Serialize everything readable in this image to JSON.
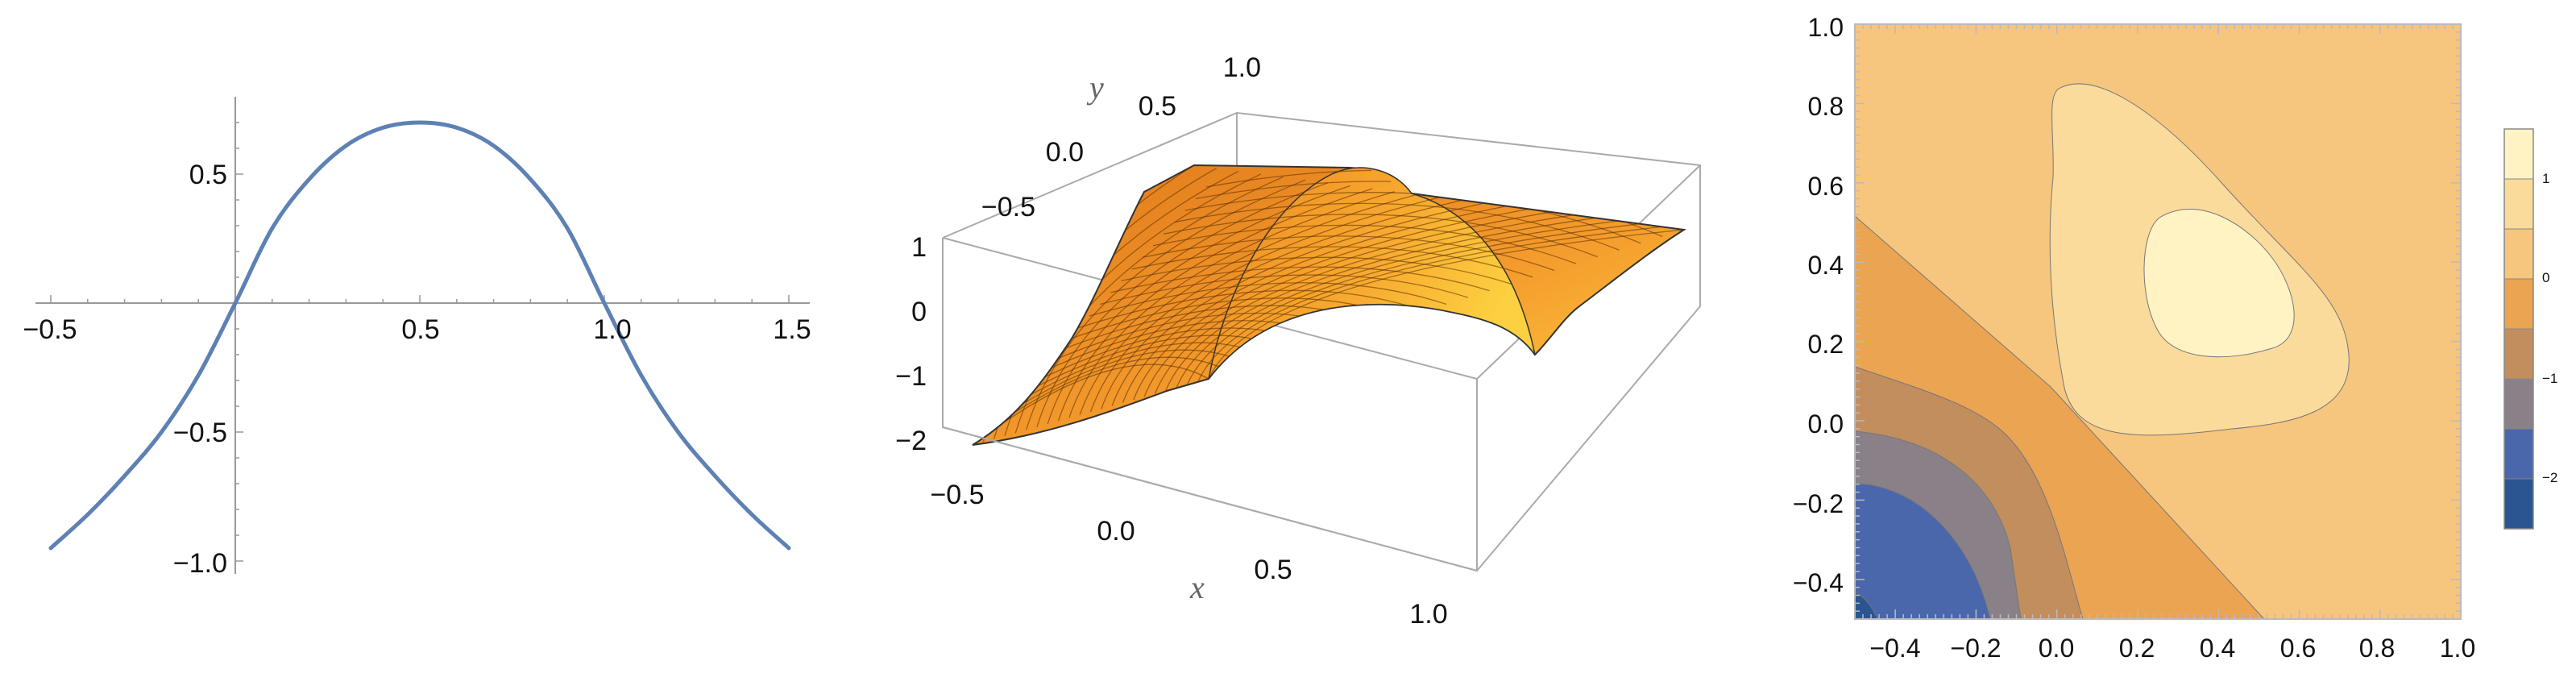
{
  "chart_data": [
    {
      "type": "line",
      "x_ticks": [
        "−0.5",
        "0.5",
        "1.0",
        "1.5"
      ],
      "y_ticks": [
        "0.5",
        "−0.5",
        "−1.0"
      ],
      "xlim": [
        -0.5,
        1.5
      ],
      "ylim": [
        -1.0,
        0.7
      ],
      "series": [
        {
          "color": "#5e81b5",
          "x": [
            -0.5,
            -0.4,
            -0.3,
            -0.2,
            -0.1,
            0.0,
            0.1,
            0.2,
            0.3,
            0.4,
            0.5,
            0.6,
            0.7,
            0.8,
            0.9,
            1.0,
            1.1,
            1.2,
            1.3,
            1.4,
            1.5
          ],
          "y": [
            -0.95,
            -0.82,
            -0.67,
            -0.5,
            -0.28,
            0.0,
            0.29,
            0.48,
            0.61,
            0.68,
            0.7,
            0.68,
            0.61,
            0.48,
            0.29,
            0.0,
            -0.28,
            -0.5,
            -0.67,
            -0.82,
            -0.95
          ]
        }
      ],
      "grid": false,
      "axes_origin": [
        0,
        0
      ]
    },
    {
      "type": "surface",
      "x_label": "x",
      "y_label": "y",
      "x_ticks": [
        "−0.5",
        "0.0",
        "0.5",
        "1.0"
      ],
      "y_ticks": [
        "−0.5",
        "0.0",
        "0.5",
        "1.0"
      ],
      "z_ticks": [
        "1",
        "0",
        "−1",
        "−2"
      ],
      "xlim": [
        -0.5,
        1.0
      ],
      "ylim": [
        -0.5,
        1.0
      ],
      "zlim": [
        -2,
        1
      ],
      "surface_color": "#f0a030"
    },
    {
      "type": "contour",
      "x_ticks": [
        "−0.4",
        "−0.2",
        "0.0",
        "0.2",
        "0.4",
        "0.6",
        "0.8",
        "1.0"
      ],
      "y_ticks": [
        "1.0",
        "0.8",
        "0.6",
        "0.4",
        "0.2",
        "0.0",
        "−0.2",
        "−0.4"
      ],
      "xlim": [
        -0.5,
        1.0
      ],
      "ylim": [
        -0.5,
        1.0
      ],
      "colorbar": {
        "ticks": [
          "1",
          "0",
          "−1",
          "−2"
        ],
        "colors": [
          "#fff3c4",
          "#fbdb9c",
          "#f6c57e",
          "#eba452",
          "#c28e5e",
          "#8a8188",
          "#4b67ac",
          "#2a5590"
        ]
      }
    }
  ]
}
